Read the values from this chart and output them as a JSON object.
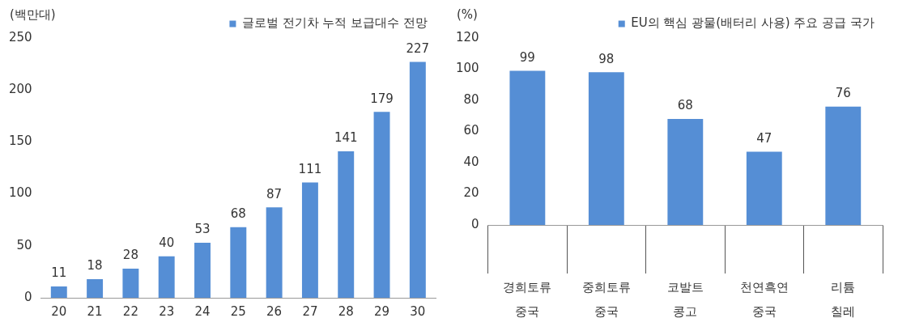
{
  "chart_data": [
    {
      "type": "bar",
      "ylabel": "(백만대)",
      "categories": [
        "20",
        "21",
        "22",
        "23",
        "24",
        "25",
        "26",
        "27",
        "28",
        "29",
        "30"
      ],
      "series": [
        {
          "name": "글로벌 전기차 누적 보급대수 전망",
          "color": "#558ed5",
          "values": [
            11,
            18,
            28,
            40,
            53,
            68,
            87,
            111,
            141,
            179,
            227
          ]
        }
      ],
      "ylim": [
        0,
        250
      ],
      "yticks": [
        0,
        50,
        100,
        150,
        200,
        250
      ],
      "data_labels": true,
      "legend": "top"
    },
    {
      "type": "bar",
      "ylabel": "(%)",
      "categories": [
        "경희토류\n중국",
        "중희토류\n중국",
        "코발트\n콩고",
        "천연흑연\n중국",
        "리튬\n칠레"
      ],
      "series": [
        {
          "name": "EU의 핵심 광물(배터리 사용) 주요 공급 국가",
          "color": "#558ed5",
          "values": [
            99,
            98,
            68,
            47,
            76
          ]
        }
      ],
      "ylim": [
        0,
        120
      ],
      "yticks": [
        0,
        20,
        40,
        60,
        80,
        100,
        120
      ],
      "data_labels": true,
      "legend": "top"
    }
  ]
}
